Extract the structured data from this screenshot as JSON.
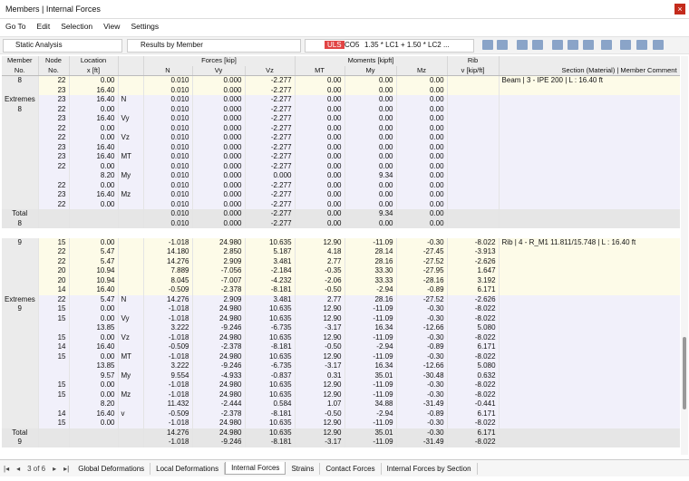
{
  "window": {
    "title": "Members | Internal Forces"
  },
  "menu": [
    "Go To",
    "Edit",
    "Selection",
    "View",
    "Settings"
  ],
  "toolbar": {
    "analysis": "Static Analysis",
    "results": "Results by Member",
    "design_situation": "ULS",
    "combination": "CO5",
    "formula": "1.35 * LC1 + 1.50 * LC2 ..."
  },
  "table": {
    "header": {
      "top": [
        "Member",
        "Node",
        "Location",
        null,
        "Forces [kip]",
        "Moments [kipft]",
        "Rib",
        null
      ],
      "bottom": [
        "No.",
        "No.",
        "x [ft]",
        null,
        "N",
        "Vy",
        "Vz",
        "MT",
        "My",
        "Mz",
        "v [kip/ft]",
        "Section (Material) | Member Comment"
      ]
    },
    "groups": [
      {
        "member_rows": [
          [
            "8",
            "22",
            "0.00",
            null,
            "0.010",
            "0.000",
            "-2.277",
            "0.00",
            "0.00",
            "0.00",
            null,
            "Beam | 3 - IPE 200 | L : 16.40 ft"
          ],
          [
            null,
            "23",
            "16.40",
            null,
            "0.010",
            "0.000",
            "-2.277",
            "0.00",
            "0.00",
            "0.00",
            null,
            null
          ]
        ],
        "extremes_rows": [
          [
            "Extremes",
            "23",
            "16.40",
            "N",
            "0.010",
            "0.000",
            "-2.277",
            "0.00",
            "0.00",
            "0.00",
            null,
            null
          ],
          [
            "8",
            "22",
            "0.00",
            null,
            "0.010",
            "0.000",
            "-2.277",
            "0.00",
            "0.00",
            "0.00",
            null,
            null
          ],
          [
            null,
            "23",
            "16.40",
            "Vy",
            "0.010",
            "0.000",
            "-2.277",
            "0.00",
            "0.00",
            "0.00",
            null,
            null
          ],
          [
            null,
            "22",
            "0.00",
            null,
            "0.010",
            "0.000",
            "-2.277",
            "0.00",
            "0.00",
            "0.00",
            null,
            null
          ],
          [
            null,
            "22",
            "0.00",
            "Vz",
            "0.010",
            "0.000",
            "-2.277",
            "0.00",
            "0.00",
            "0.00",
            null,
            null
          ],
          [
            null,
            "23",
            "16.40",
            null,
            "0.010",
            "0.000",
            "-2.277",
            "0.00",
            "0.00",
            "0.00",
            null,
            null
          ],
          [
            null,
            "23",
            "16.40",
            "MT",
            "0.010",
            "0.000",
            "-2.277",
            "0.00",
            "0.00",
            "0.00",
            null,
            null
          ],
          [
            null,
            "22",
            "0.00",
            null,
            "0.010",
            "0.000",
            "-2.277",
            "0.00",
            "0.00",
            "0.00",
            null,
            null
          ],
          [
            null,
            null,
            "8.20",
            "My",
            "0.010",
            "0.000",
            "0.000",
            "0.00",
            "9.34",
            "0.00",
            null,
            null
          ],
          [
            null,
            "22",
            "0.00",
            null,
            "0.010",
            "0.000",
            "-2.277",
            "0.00",
            "0.00",
            "0.00",
            null,
            null
          ],
          [
            null,
            "23",
            "16.40",
            "Mz",
            "0.010",
            "0.000",
            "-2.277",
            "0.00",
            "0.00",
            "0.00",
            null,
            null
          ],
          [
            null,
            "22",
            "0.00",
            null,
            "0.010",
            "0.000",
            "-2.277",
            "0.00",
            "0.00",
            "0.00",
            null,
            null
          ]
        ],
        "total_rows": [
          [
            "Total",
            null,
            null,
            null,
            "0.010",
            "0.000",
            "-2.277",
            "0.00",
            "9.34",
            "0.00",
            null,
            null
          ],
          [
            "8",
            null,
            null,
            null,
            "0.010",
            "0.000",
            "-2.277",
            "0.00",
            "0.00",
            "0.00",
            null,
            null
          ]
        ]
      },
      {
        "member_rows": [
          [
            "9",
            "15",
            "0.00",
            null,
            "-1.018",
            "24.980",
            "10.635",
            "12.90",
            "-11.09",
            "-0.30",
            "-8.022",
            "Rib | 4 - R_M1 11.811/15.748 | L : 16.40 ft"
          ],
          [
            null,
            "22",
            "5.47",
            null,
            "14.180",
            "2.850",
            "5.187",
            "4.18",
            "28.14",
            "-27.45",
            "-3.913",
            null
          ],
          [
            null,
            "22",
            "5.47",
            null,
            "14.276",
            "2.909",
            "3.481",
            "2.77",
            "28.16",
            "-27.52",
            "-2.626",
            null
          ],
          [
            null,
            "20",
            "10.94",
            null,
            "7.889",
            "-7.056",
            "-2.184",
            "-0.35",
            "33.30",
            "-27.95",
            "1.647",
            null
          ],
          [
            null,
            "20",
            "10.94",
            null,
            "8.045",
            "-7.007",
            "-4.232",
            "-2.06",
            "33.33",
            "-28.16",
            "3.192",
            null
          ],
          [
            null,
            "14",
            "16.40",
            null,
            "-0.509",
            "-2.378",
            "-8.181",
            "-0.50",
            "-2.94",
            "-0.89",
            "6.171",
            null
          ]
        ],
        "extremes_rows": [
          [
            "Extremes",
            "22",
            "5.47",
            "N",
            "14.276",
            "2.909",
            "3.481",
            "2.77",
            "28.16",
            "-27.52",
            "-2.626",
            null
          ],
          [
            "9",
            "15",
            "0.00",
            null,
            "-1.018",
            "24.980",
            "10.635",
            "12.90",
            "-11.09",
            "-0.30",
            "-8.022",
            null
          ],
          [
            null,
            "15",
            "0.00",
            "Vy",
            "-1.018",
            "24.980",
            "10.635",
            "12.90",
            "-11.09",
            "-0.30",
            "-8.022",
            null
          ],
          [
            null,
            null,
            "13.85",
            null,
            "3.222",
            "-9.246",
            "-6.735",
            "-3.17",
            "16.34",
            "-12.66",
            "5.080",
            null
          ],
          [
            null,
            "15",
            "0.00",
            "Vz",
            "-1.018",
            "24.980",
            "10.635",
            "12.90",
            "-11.09",
            "-0.30",
            "-8.022",
            null
          ],
          [
            null,
            "14",
            "16.40",
            null,
            "-0.509",
            "-2.378",
            "-8.181",
            "-0.50",
            "-2.94",
            "-0.89",
            "6.171",
            null
          ],
          [
            null,
            "15",
            "0.00",
            "MT",
            "-1.018",
            "24.980",
            "10.635",
            "12.90",
            "-11.09",
            "-0.30",
            "-8.022",
            null
          ],
          [
            null,
            null,
            "13.85",
            null,
            "3.222",
            "-9.246",
            "-6.735",
            "-3.17",
            "16.34",
            "-12.66",
            "5.080",
            null
          ],
          [
            null,
            null,
            "9.57",
            "My",
            "9.554",
            "-4.933",
            "-0.837",
            "0.31",
            "35.01",
            "-30.48",
            "0.632",
            null
          ],
          [
            null,
            "15",
            "0.00",
            null,
            "-1.018",
            "24.980",
            "10.635",
            "12.90",
            "-11.09",
            "-0.30",
            "-8.022",
            null
          ],
          [
            null,
            "15",
            "0.00",
            "Mz",
            "-1.018",
            "24.980",
            "10.635",
            "12.90",
            "-11.09",
            "-0.30",
            "-8.022",
            null
          ],
          [
            null,
            null,
            "8.20",
            null,
            "11.432",
            "-2.444",
            "0.584",
            "1.07",
            "34.88",
            "-31.49",
            "-0.441",
            null
          ],
          [
            null,
            "14",
            "16.40",
            "v",
            "-0.509",
            "-2.378",
            "-8.181",
            "-0.50",
            "-2.94",
            "-0.89",
            "6.171",
            null
          ],
          [
            null,
            "15",
            "0.00",
            null,
            "-1.018",
            "24.980",
            "10.635",
            "12.90",
            "-11.09",
            "-0.30",
            "-8.022",
            null
          ]
        ],
        "total_rows": [
          [
            "Total",
            null,
            null,
            null,
            "14.276",
            "24.980",
            "10.635",
            "12.90",
            "35.01",
            "-0.30",
            "6.171",
            null
          ],
          [
            "9",
            null,
            null,
            null,
            "-1.018",
            "-9.246",
            "-8.181",
            "-3.17",
            "-11.09",
            "-31.49",
            "-8.022",
            null
          ]
        ]
      }
    ]
  },
  "pager": "3 of 6",
  "tabs": [
    "Global Deformations",
    "Local Deformations",
    "Internal Forces",
    "Strains",
    "Contact Forces",
    "Internal Forces by Section"
  ],
  "active_tab": 2
}
